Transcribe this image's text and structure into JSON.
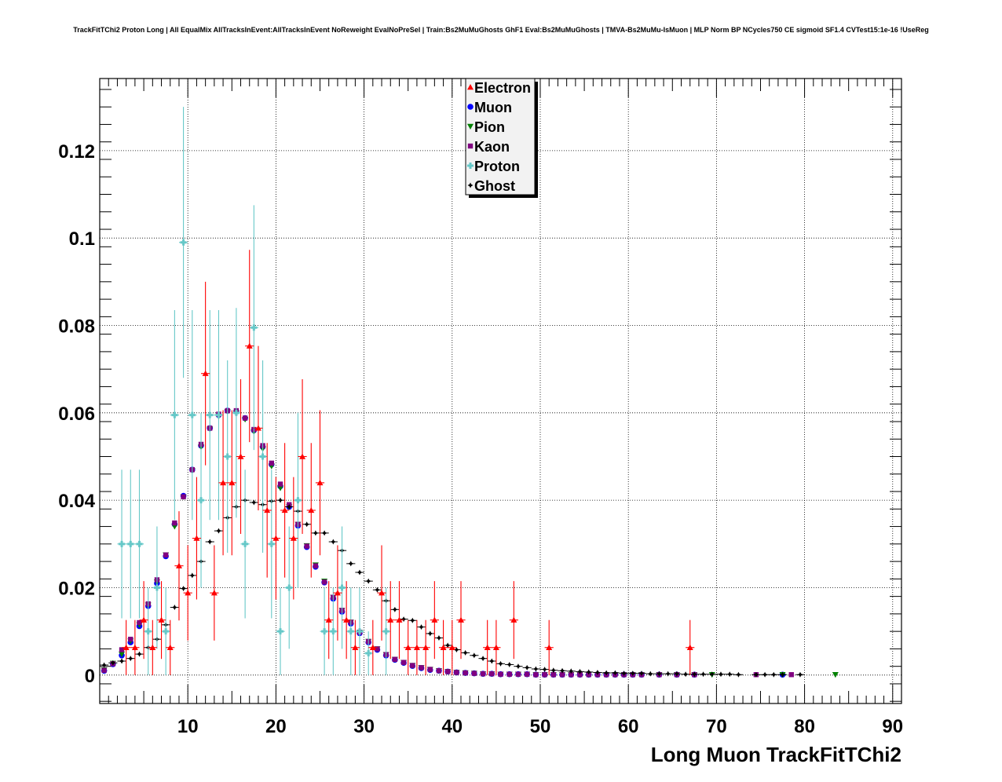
{
  "title": "TrackFitTChi2 Proton Long | All EqualMix AllTracksInEvent:AllTracksInEvent NoReweight EvalNoPreSel | Train:Bs2MuMuGhosts GhF1 Eval:Bs2MuMuGhosts | TMVA-Bs2MuMu-IsMuon | MLP Norm BP NCycles750 CE sigmoid SF1.4 CVTest15:1e-16 !UseReg",
  "chart_data": {
    "type": "scatter",
    "title": "TrackFitTChi2 Proton Long | All EqualMix AllTracksInEvent:AllTracksInEvent NoReweight EvalNoPreSel | Train:Bs2MuMuGhosts GhF1 Eval:Bs2MuMuGhosts | TMVA-Bs2MuMu-IsMuon | MLP Norm BP NCycles750 CE sigmoid SF1.4 CVTest15:1e-16 !UseReg",
    "xlabel": "Long Muon TrackFitTChi2",
    "ylabel": "",
    "xlim": [
      0,
      91
    ],
    "ylim": [
      -0.0065,
      0.1365
    ],
    "xticks": [
      10,
      20,
      30,
      40,
      50,
      60,
      70,
      80,
      90
    ],
    "xtick_labels": [
      "10",
      "20",
      "30",
      "40",
      "50",
      "60",
      "70",
      "80",
      "90"
    ],
    "yticks": [
      0,
      0.02,
      0.04,
      0.06,
      0.08,
      0.1,
      0.12
    ],
    "ytick_labels": [
      "0",
      "0.02",
      "0.04",
      "0.06",
      "0.08",
      "0.1",
      "0.12"
    ],
    "grid": true,
    "legend_position": "top-center",
    "series": [
      {
        "name": "Electron",
        "color": "#ff0000",
        "marker": "triangle-up",
        "x": [
          3,
          4,
          5,
          6,
          7,
          8,
          9,
          10,
          11,
          12,
          13,
          14,
          15,
          16,
          17,
          18,
          19,
          20,
          21,
          22,
          23,
          24,
          25,
          26,
          27,
          28,
          29,
          31,
          32,
          33,
          34,
          35,
          36,
          37,
          38,
          39,
          40,
          41,
          44,
          45,
          47,
          51,
          67
        ],
        "y": [
          0.0063,
          0.0063,
          0.0126,
          0.0063,
          0.0126,
          0.0063,
          0.025,
          0.0188,
          0.0313,
          0.069,
          0.0188,
          0.044,
          0.044,
          0.05,
          0.0753,
          0.0565,
          0.0377,
          0.0313,
          0.0377,
          0.0313,
          0.05,
          0.0377,
          0.044,
          0.0126,
          0.0188,
          0.0126,
          0.0063,
          0.0063,
          0.0188,
          0.0126,
          0.0126,
          0.0063,
          0.0063,
          0.0063,
          0.0126,
          0.0063,
          0.0063,
          0.0126,
          0.0063,
          0.0063,
          0.0126,
          0.0063,
          0.0063
        ],
        "err": [
          0.0063,
          0.0063,
          0.0089,
          0.0063,
          0.0089,
          0.0063,
          0.0125,
          0.0109,
          0.014,
          0.021,
          0.0109,
          0.0166,
          0.0166,
          0.0177,
          0.022,
          0.0188,
          0.0154,
          0.014,
          0.0154,
          0.014,
          0.0177,
          0.0154,
          0.0166,
          0.0089,
          0.0109,
          0.0089,
          0.0063,
          0.0063,
          0.0109,
          0.0089,
          0.0089,
          0.0063,
          0.0063,
          0.0063,
          0.0089,
          0.0063,
          0.0063,
          0.0089,
          0.0063,
          0.0063,
          0.0089,
          0.0063,
          0.0063
        ]
      },
      {
        "name": "Muon",
        "color": "#0000ff",
        "marker": "circle",
        "x": [
          0.5,
          1.5,
          2.5,
          3.5,
          4.5,
          5.5,
          6.5,
          7.5,
          8.5,
          9.5,
          10.5,
          11.5,
          12.5,
          13.5,
          14.5,
          15.5,
          16.5,
          17.5,
          18.5,
          19.5,
          20.5,
          21.5,
          22.5,
          23.5,
          24.5,
          25.5,
          26.5,
          27.5,
          28.5,
          29.5,
          30.5,
          31.5,
          32.5,
          33.5,
          34.5,
          35.5,
          36.5,
          37.5,
          38.5,
          39.5,
          40.5,
          41.5,
          42.5,
          43.5,
          44.5,
          45.5,
          46.5,
          47.5,
          48.5,
          49.5,
          50.5,
          51.5,
          52.5,
          53.5,
          54.5,
          55.5,
          56.5,
          57.5,
          58.5,
          59.5,
          60.5,
          61.5,
          63.5,
          65.5,
          67.5,
          77.5
        ],
        "y": [
          0.001,
          0.0025,
          0.0045,
          0.0075,
          0.0112,
          0.0158,
          0.021,
          0.0272,
          0.0345,
          0.041,
          0.047,
          0.0525,
          0.0565,
          0.0595,
          0.0605,
          0.0603,
          0.0588,
          0.056,
          0.0522,
          0.0482,
          0.0432,
          0.0385,
          0.0342,
          0.0293,
          0.0248,
          0.0212,
          0.0175,
          0.0145,
          0.0118,
          0.0096,
          0.0075,
          0.0058,
          0.0045,
          0.0035,
          0.0028,
          0.0021,
          0.0016,
          0.0012,
          0.001,
          0.0008,
          0.0006,
          0.0005,
          0.0004,
          0.0003,
          0.0003,
          0.0002,
          0.0002,
          0.0002,
          0.0002,
          0.0001,
          0.0001,
          0.0001,
          0.0001,
          0.0001,
          0.0001,
          0.0001,
          0.0001,
          0.0001,
          0.0001,
          0.0001,
          0.0001,
          0.0001,
          0.0001,
          0.0001,
          0.0001,
          0.0001
        ]
      },
      {
        "name": "Pion",
        "color": "#008000",
        "marker": "triangle-down",
        "x": [
          0.5,
          1.5,
          2.5,
          3.5,
          4.5,
          5.5,
          6.5,
          7.5,
          8.5,
          9.5,
          10.5,
          11.5,
          12.5,
          13.5,
          14.5,
          15.5,
          16.5,
          17.5,
          18.5,
          19.5,
          20.5,
          21.5,
          22.5,
          23.5,
          24.5,
          25.5,
          26.5,
          27.5,
          28.5,
          29.5,
          30.5,
          31.5,
          32.5,
          33.5,
          34.5,
          35.5,
          36.5,
          37.5,
          38.5,
          39.5,
          40.5,
          41.5,
          42.5,
          43.5,
          44.5,
          45.5,
          46.5,
          47.5,
          48.5,
          49.5,
          50.5,
          51.5,
          52.5,
          53.5,
          54.5,
          55.5,
          56.5,
          57.5,
          58.5,
          59.5,
          60.5,
          61.5,
          63.5,
          65.5,
          67.5,
          69.5,
          77.5,
          83.5
        ],
        "y": [
          0.0012,
          0.0027,
          0.0048,
          0.0078,
          0.0115,
          0.016,
          0.0213,
          0.0275,
          0.034,
          0.0408,
          0.0468,
          0.0522,
          0.0563,
          0.0592,
          0.0603,
          0.06,
          0.0585,
          0.0557,
          0.0518,
          0.0478,
          0.0428,
          0.0385,
          0.0345,
          0.0296,
          0.0252,
          0.0215,
          0.0178,
          0.0148,
          0.0121,
          0.0098,
          0.0077,
          0.006,
          0.0047,
          0.0036,
          0.0029,
          0.0022,
          0.0017,
          0.0013,
          0.001,
          0.0008,
          0.0006,
          0.0005,
          0.0004,
          0.0003,
          0.0003,
          0.0002,
          0.0002,
          0.0002,
          0.0002,
          0.0001,
          0.0001,
          0.0001,
          0.0001,
          0.0001,
          0.0001,
          0.0001,
          0.0001,
          0.0001,
          0.0001,
          0.0001,
          0.0001,
          0.0001,
          0.0001,
          0.0001,
          0.0001,
          0.0001,
          0.0001,
          0.0001
        ]
      },
      {
        "name": "Kaon",
        "color": "#800080",
        "marker": "square",
        "x": [
          0.5,
          1.5,
          2.5,
          3.5,
          4.5,
          5.5,
          6.5,
          7.5,
          8.5,
          9.5,
          10.5,
          11.5,
          12.5,
          13.5,
          14.5,
          15.5,
          16.5,
          17.5,
          18.5,
          19.5,
          20.5,
          21.5,
          22.5,
          23.5,
          24.5,
          25.5,
          26.5,
          27.5,
          28.5,
          29.5,
          30.5,
          31.5,
          32.5,
          33.5,
          34.5,
          35.5,
          36.5,
          37.5,
          38.5,
          39.5,
          40.5,
          41.5,
          42.5,
          43.5,
          44.5,
          45.5,
          46.5,
          47.5,
          48.5,
          49.5,
          50.5,
          51.5,
          52.5,
          53.5,
          54.5,
          55.5,
          56.5,
          57.5,
          58.5,
          59.5,
          60.5,
          61.5,
          63.5,
          65.5,
          67.5,
          74.5,
          78.5
        ],
        "y": [
          0.0011,
          0.0026,
          0.0058,
          0.0082,
          0.012,
          0.0163,
          0.0218,
          0.0275,
          0.0348,
          0.0408,
          0.047,
          0.0528,
          0.0565,
          0.0597,
          0.0605,
          0.0605,
          0.0588,
          0.0562,
          0.0525,
          0.0485,
          0.0437,
          0.039,
          0.0345,
          0.0295,
          0.025,
          0.0213,
          0.0178,
          0.0148,
          0.0121,
          0.0098,
          0.0077,
          0.006,
          0.0047,
          0.0036,
          0.0029,
          0.0022,
          0.0017,
          0.0013,
          0.001,
          0.0008,
          0.0006,
          0.0005,
          0.0004,
          0.0003,
          0.0003,
          0.0002,
          0.0002,
          0.0002,
          0.0002,
          0.0001,
          0.0001,
          0.0001,
          0.0001,
          0.0001,
          0.0001,
          0.0001,
          0.0001,
          0.0001,
          0.0001,
          0.0001,
          0.0001,
          0.0001,
          0.0001,
          0.0001,
          0.0001,
          0.0001,
          0.0001
        ]
      },
      {
        "name": "Proton",
        "color": "#66c8c8",
        "marker": "cross",
        "x": [
          2.5,
          3.5,
          4.5,
          5.5,
          6.5,
          7.5,
          8.5,
          9.5,
          10.5,
          11.5,
          12.5,
          13.5,
          14.5,
          15.5,
          16.5,
          17.5,
          18.5,
          19.5,
          20.5,
          21.5,
          22.5,
          25.5,
          26.5,
          27.5,
          28.5,
          29.5,
          30.5,
          32.5
        ],
        "y": [
          0.03,
          0.03,
          0.03,
          0.01,
          0.02,
          0.01,
          0.0595,
          0.099,
          0.0595,
          0.04,
          0.0595,
          0.0595,
          0.05,
          0.06,
          0.03,
          0.0795,
          0.05,
          0.03,
          0.01,
          0.02,
          0.04,
          0.01,
          0.01,
          0.02,
          0.01,
          0.01,
          0.005,
          0.01
        ],
        "err": [
          0.017,
          0.017,
          0.017,
          0.01,
          0.014,
          0.01,
          0.024,
          0.031,
          0.024,
          0.02,
          0.024,
          0.024,
          0.022,
          0.024,
          0.017,
          0.028,
          0.022,
          0.017,
          0.01,
          0.014,
          0.02,
          0.01,
          0.01,
          0.014,
          0.01,
          0.01,
          0.005,
          0.01
        ]
      },
      {
        "name": "Ghost",
        "color": "#000000",
        "marker": "star",
        "x": [
          0.5,
          1.5,
          2.5,
          3.5,
          4.5,
          5.5,
          6.5,
          7.5,
          8.5,
          9.5,
          10.5,
          11.5,
          12.5,
          13.5,
          14.5,
          15.5,
          16.5,
          17.5,
          18.5,
          19.5,
          20.5,
          21.5,
          22.5,
          23.5,
          24.5,
          25.5,
          26.5,
          27.5,
          28.5,
          29.5,
          30.5,
          31.5,
          32.5,
          33.5,
          34.5,
          35.5,
          36.5,
          37.5,
          38.5,
          39.5,
          40.5,
          41.5,
          42.5,
          43.5,
          44.5,
          45.5,
          46.5,
          47.5,
          48.5,
          49.5,
          50.5,
          51.5,
          52.5,
          53.5,
          54.5,
          55.5,
          56.5,
          57.5,
          58.5,
          59.5,
          60.5,
          61.5,
          62.5,
          63.5,
          64.5,
          65.5,
          66.5,
          67.5,
          68.5,
          69.5,
          70.5,
          71.5,
          72.5,
          74.5,
          75.5,
          76.5,
          77.5,
          79.5
        ],
        "y": [
          0.0023,
          0.0028,
          0.0032,
          0.0038,
          0.0048,
          0.0063,
          0.0082,
          0.0115,
          0.0155,
          0.0198,
          0.0228,
          0.026,
          0.0305,
          0.033,
          0.036,
          0.0385,
          0.04,
          0.0395,
          0.039,
          0.0398,
          0.04,
          0.0385,
          0.0375,
          0.0345,
          0.0325,
          0.0325,
          0.0305,
          0.0285,
          0.0255,
          0.0235,
          0.0215,
          0.0195,
          0.017,
          0.015,
          0.0128,
          0.0125,
          0.011,
          0.0095,
          0.0085,
          0.0068,
          0.0058,
          0.0051,
          0.0045,
          0.0038,
          0.0032,
          0.0026,
          0.0024,
          0.002,
          0.0017,
          0.0014,
          0.0013,
          0.0011,
          0.001,
          0.0009,
          0.0008,
          0.0007,
          0.0006,
          0.0005,
          0.0005,
          0.0004,
          0.0004,
          0.0004,
          0.0003,
          0.0003,
          0.0003,
          0.0003,
          0.0002,
          0.0002,
          0.0002,
          0.0002,
          0.0002,
          0.0002,
          0.0001,
          0.0001,
          0.0001,
          0.0001,
          0.0001,
          0.0001
        ]
      }
    ]
  }
}
